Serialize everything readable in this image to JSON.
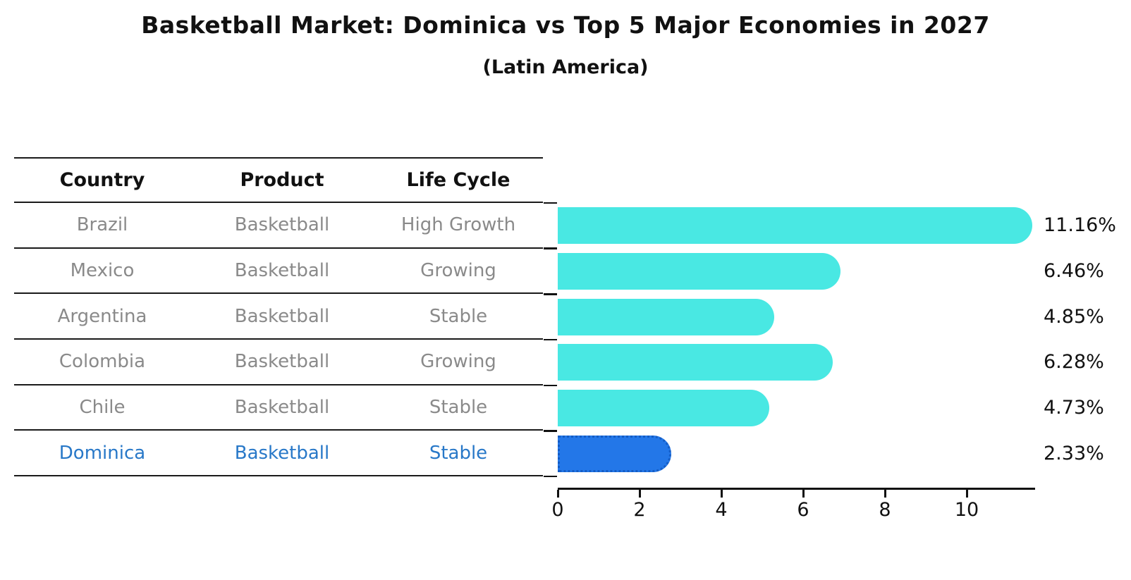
{
  "title": "Basketball Market: Dominica vs Top 5 Major Economies in 2027",
  "subtitle": "(Latin America)",
  "table": {
    "headers": [
      "Country",
      "Product",
      "Life Cycle"
    ],
    "rows": [
      {
        "country": "Brazil",
        "product": "Basketball",
        "life_cycle": "High Growth",
        "highlight": false
      },
      {
        "country": "Mexico",
        "product": "Basketball",
        "life_cycle": "Growing",
        "highlight": false
      },
      {
        "country": "Argentina",
        "product": "Basketball",
        "life_cycle": "Stable",
        "highlight": false
      },
      {
        "country": "Colombia",
        "product": "Basketball",
        "life_cycle": "Growing",
        "highlight": false
      },
      {
        "country": "Chile",
        "product": "Basketball",
        "life_cycle": "Stable",
        "highlight": false
      },
      {
        "country": "Dominica",
        "product": "Basketball",
        "life_cycle": "Stable",
        "highlight": true
      }
    ]
  },
  "chart_data": {
    "type": "bar",
    "orientation": "horizontal",
    "title": "Basketball Market: Dominica vs Top 5 Major Economies in 2027",
    "subtitle": "(Latin America)",
    "categories": [
      "Brazil",
      "Mexico",
      "Argentina",
      "Colombia",
      "Chile",
      "Dominica"
    ],
    "values": [
      11.16,
      6.46,
      4.85,
      6.28,
      4.73,
      2.33
    ],
    "value_labels": [
      "11.16%",
      "6.46%",
      "4.85%",
      "6.28%",
      "4.73%",
      "2.33%"
    ],
    "x_tick_labels": [
      "0",
      "2",
      "4",
      "6",
      "8",
      "10"
    ],
    "x_ticks": [
      0,
      2,
      4,
      6,
      8,
      10
    ],
    "xlim": [
      0,
      11.67
    ],
    "grid": false,
    "legend": null,
    "bar_color": "#49E8E3",
    "highlight_color": "#2377E8",
    "highlight_border_color": "#145cc4",
    "highlight_index": 5,
    "text_gray": "#8a8a8a",
    "highlight_text_color": "#2878c8"
  }
}
